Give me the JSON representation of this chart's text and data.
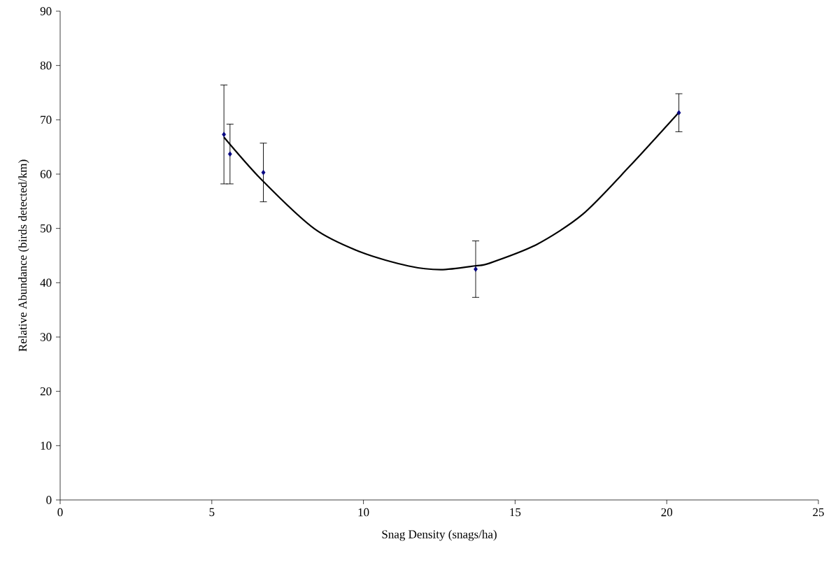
{
  "chart_data": {
    "type": "scatter",
    "xlabel": "Snag Density (snags/ha)",
    "ylabel": "Relative Abundance (birds detected/km)",
    "xlim": [
      0,
      25
    ],
    "xticks": [
      0,
      5,
      10,
      15,
      20,
      25
    ],
    "ylim": [
      0,
      90
    ],
    "yticks": [
      0,
      10,
      20,
      30,
      40,
      50,
      60,
      70,
      80,
      90
    ],
    "series": [
      {
        "color": "#000080",
        "marker": "diamond",
        "x": [
          5.4,
          5.6,
          6.7,
          13.7,
          20.4
        ],
        "values": [
          67.3,
          63.7,
          60.3,
          42.5,
          71.3
        ],
        "errors": [
          9.1,
          5.5,
          5.4,
          5.2,
          3.5
        ]
      },
      {
        "type": "line",
        "color": "#000000",
        "line_style": "solid",
        "x": [
          5.4,
          6.67,
          8.39,
          9.93,
          11.47,
          12.55,
          13.68,
          14.16,
          15.7,
          17.23,
          18.77,
          20.39
        ],
        "values": [
          66.8,
          58.8,
          49.9,
          45.6,
          43.1,
          42.4,
          43.1,
          43.6,
          47.0,
          52.6,
          61.4,
          71.3
        ]
      }
    ]
  }
}
